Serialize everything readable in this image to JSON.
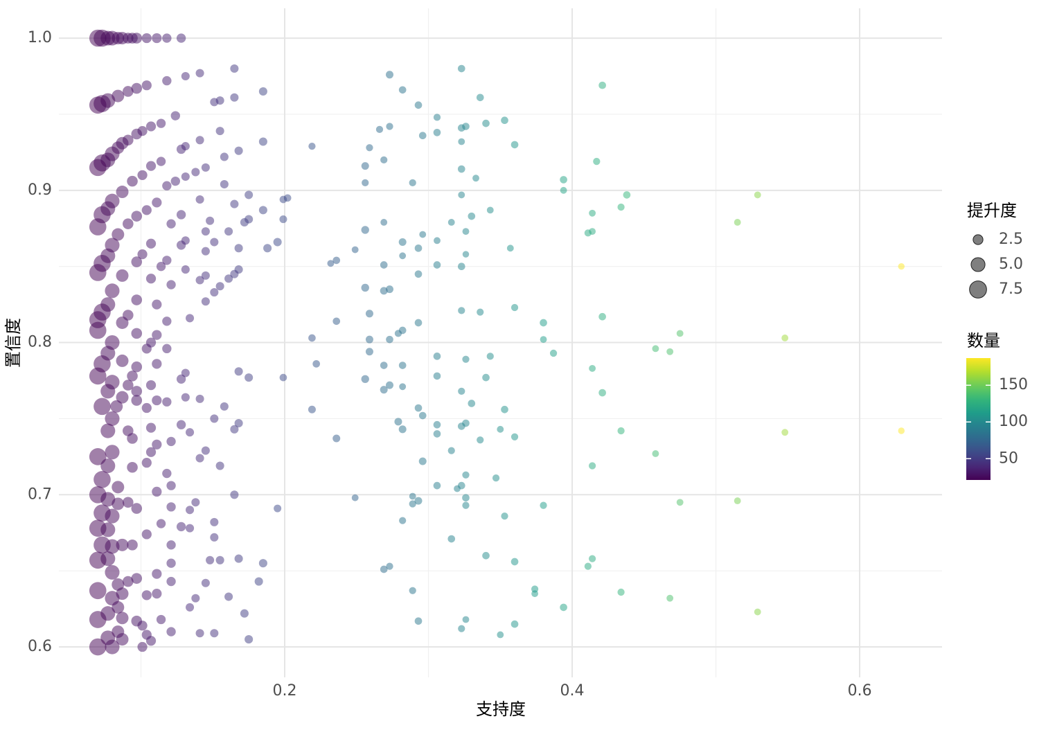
{
  "chart_data": {
    "type": "scatter",
    "x_label": "支持度",
    "y_label": "置信度",
    "size_label": "提升度",
    "color_label": "数量",
    "xlim": [
      0.0429,
      0.6573
    ],
    "ylim": [
      0.58,
      1.0196
    ],
    "xticks": [
      0.2,
      0.4,
      0.6
    ],
    "yticks": [
      0.6,
      0.7,
      0.8,
      0.9,
      {
        "value": 1,
        "label": "1.0"
      }
    ],
    "x_minor_ticks": [
      0.1,
      0.3,
      0.5
    ],
    "y_minor_ticks": [
      0.65,
      0.75,
      0.85,
      0.95
    ],
    "grid": true,
    "colormap": "viridis",
    "opacity": 0.5,
    "color_lim": [
      21,
      187
    ],
    "color_ticks": [
      50,
      100,
      150
    ],
    "size_ticks": [
      2.5,
      {
        "value": 5,
        "label": "5.0"
      },
      7.5
    ],
    "x": [
      0.07,
      0.073,
      0.077,
      0.08,
      0.084,
      0.087,
      0.091,
      0.094,
      0.097,
      0.104,
      0.111,
      0.118,
      0.128,
      0.165,
      0.141,
      0.131,
      0.118,
      0.185,
      0.165,
      0.155,
      0.151,
      0.104,
      0.097,
      0.091,
      0.084,
      0.077,
      0.073,
      0.07,
      0.124,
      0.114,
      0.107,
      0.101,
      0.097,
      0.091,
      0.087,
      0.084,
      0.08,
      0.077,
      0.073,
      0.07,
      0.155,
      0.141,
      0.131,
      0.128,
      0.185,
      0.168,
      0.158,
      0.114,
      0.107,
      0.101,
      0.094,
      0.087,
      0.08,
      0.077,
      0.073,
      0.07,
      0.145,
      0.138,
      0.131,
      0.124,
      0.118,
      0.158,
      0.175,
      0.165,
      0.141,
      0.111,
      0.104,
      0.097,
      0.091,
      0.084,
      0.08,
      0.077,
      0.073,
      0.07,
      0.185,
      0.175,
      0.172,
      0.148,
      0.128,
      0.121,
      0.145,
      0.161,
      0.131,
      0.128,
      0.107,
      0.101,
      0.151,
      0.145,
      0.168,
      0.188,
      0.195,
      0.097,
      0.118,
      0.114,
      0.131,
      0.168,
      0.165,
      0.161,
      0.141,
      0.145,
      0.155,
      0.151,
      0.121,
      0.107,
      0.087,
      0.08,
      0.077,
      0.073,
      0.07,
      0.145,
      0.111,
      0.097,
      0.134,
      0.118,
      0.091,
      0.087,
      0.07,
      0.097,
      0.111,
      0.107,
      0.08,
      0.077,
      0.104,
      0.118,
      0.073,
      0.087,
      0.097,
      0.111,
      0.131,
      0.128,
      0.168,
      0.175,
      0.07,
      0.08,
      0.094,
      0.107,
      0.091,
      0.077,
      0.097,
      0.141,
      0.131,
      0.118,
      0.111,
      0.097,
      0.087,
      0.073,
      0.083,
      0.104,
      0.158,
      0.151,
      0.08,
      0.128,
      0.168,
      0.165,
      0.107,
      0.077,
      0.134,
      0.091,
      0.094,
      0.121,
      0.111,
      0.145,
      0.08,
      0.107,
      0.07,
      0.141,
      0.104,
      0.077,
      0.155,
      0.094,
      0.118,
      0.073,
      0.121,
      0.084,
      0.111,
      0.07,
      0.165,
      0.077,
      0.091,
      0.084,
      0.138,
      0.121,
      0.097,
      0.134,
      0.073,
      0.08,
      0.114,
      0.151,
      0.128,
      0.134,
      0.07,
      0.077,
      0.104,
      0.151,
      0.121,
      0.073,
      0.08,
      0.087,
      0.094,
      0.168,
      0.155,
      0.148,
      0.185,
      0.121,
      0.077,
      0.07,
      0.08,
      0.111,
      0.097,
      0.182,
      0.145,
      0.121,
      0.091,
      0.084,
      0.07,
      0.111,
      0.087,
      0.104,
      0.161,
      0.138,
      0.08,
      0.134,
      0.084,
      0.077,
      0.172,
      0.114,
      0.097,
      0.087,
      0.07,
      0.101,
      0.084,
      0.121,
      0.141,
      0.151,
      0.104,
      0.077,
      0.087,
      0.107,
      0.175,
      0.07,
      0.08,
      0.101,
      0.629,
      0.629,
      0.548,
      0.548,
      0.529,
      0.529,
      0.515,
      0.515,
      0.475,
      0.475,
      0.468,
      0.468,
      0.458,
      0.458,
      0.438,
      0.434,
      0.434,
      0.434,
      0.421,
      0.421,
      0.421,
      0.417,
      0.414,
      0.414,
      0.411,
      0.414,
      0.414,
      0.414,
      0.411,
      0.394,
      0.394,
      0.394,
      0.387,
      0.38,
      0.38,
      0.38,
      0.374,
      0.374,
      0.36,
      0.36,
      0.36,
      0.36,
      0.36,
      0.357,
      0.353,
      0.353,
      0.353,
      0.35,
      0.35,
      0.343,
      0.343,
      0.34,
      0.34,
      0.34,
      0.347,
      0.336,
      0.336,
      0.336,
      0.333,
      0.33,
      0.33,
      0.326,
      0.326,
      0.326,
      0.326,
      0.326,
      0.326,
      0.326,
      0.326,
      0.326,
      0.323,
      0.323,
      0.323,
      0.323,
      0.323,
      0.323,
      0.323,
      0.323,
      0.323,
      0.323,
      0.323,
      0.32,
      0.316,
      0.316,
      0.316,
      0.306,
      0.306,
      0.306,
      0.306,
      0.306,
      0.306,
      0.306,
      0.306,
      0.306,
      0.293,
      0.296,
      0.296,
      0.293,
      0.293,
      0.293,
      0.293,
      0.296,
      0.296,
      0.293,
      0.293,
      0.289,
      0.289,
      0.289,
      0.289,
      0.282,
      0.282,
      0.282,
      0.282,
      0.282,
      0.282,
      0.282,
      0.282,
      0.279,
      0.279,
      0.273,
      0.273,
      0.273,
      0.273,
      0.273,
      0.273,
      0.269,
      0.269,
      0.269,
      0.269,
      0.269,
      0.269,
      0.269,
      0.266,
      0.259,
      0.259,
      0.259,
      0.259,
      0.256,
      0.256,
      0.256,
      0.256,
      0.256,
      0.249,
      0.249,
      0.236,
      0.236,
      0.236,
      0.232,
      0.222,
      0.219,
      0.219,
      0.219,
      0.202,
      0.199,
      0.199,
      0.199,
      0.195
    ],
    "values": [
      1,
      1,
      1,
      1,
      1,
      1,
      1,
      1,
      1,
      1,
      1,
      1,
      1,
      0.98,
      0.977,
      0.975,
      0.972,
      0.965,
      0.961,
      0.959,
      0.958,
      0.969,
      0.967,
      0.965,
      0.962,
      0.959,
      0.957,
      0.956,
      0.949,
      0.944,
      0.942,
      0.939,
      0.937,
      0.933,
      0.931,
      0.928,
      0.924,
      0.92,
      0.918,
      0.915,
      0.939,
      0.933,
      0.929,
      0.927,
      0.932,
      0.926,
      0.922,
      0.919,
      0.916,
      0.91,
      0.906,
      0.899,
      0.893,
      0.888,
      0.884,
      0.876,
      0.915,
      0.912,
      0.909,
      0.906,
      0.903,
      0.904,
      0.897,
      0.891,
      0.894,
      0.892,
      0.887,
      0.883,
      0.878,
      0.871,
      0.864,
      0.857,
      0.852,
      0.846,
      0.887,
      0.881,
      0.879,
      0.88,
      0.884,
      0.878,
      0.873,
      0.873,
      0.867,
      0.864,
      0.865,
      0.858,
      0.866,
      0.86,
      0.862,
      0.862,
      0.866,
      0.853,
      0.854,
      0.85,
      0.848,
      0.848,
      0.845,
      0.842,
      0.841,
      0.844,
      0.837,
      0.833,
      0.838,
      0.842,
      0.844,
      0.834,
      0.825,
      0.82,
      0.815,
      0.827,
      0.825,
      0.828,
      0.816,
      0.814,
      0.818,
      0.813,
      0.808,
      0.806,
      0.805,
      0.8,
      0.8,
      0.793,
      0.796,
      0.796,
      0.786,
      0.788,
      0.784,
      0.786,
      0.78,
      0.776,
      0.781,
      0.777,
      0.778,
      0.774,
      0.778,
      0.772,
      0.772,
      0.768,
      0.768,
      0.763,
      0.764,
      0.761,
      0.762,
      0.762,
      0.764,
      0.758,
      0.758,
      0.757,
      0.758,
      0.75,
      0.75,
      0.746,
      0.747,
      0.743,
      0.744,
      0.742,
      0.741,
      0.742,
      0.737,
      0.735,
      0.733,
      0.729,
      0.728,
      0.728,
      0.725,
      0.724,
      0.721,
      0.719,
      0.719,
      0.718,
      0.714,
      0.71,
      0.706,
      0.705,
      0.702,
      0.7,
      0.7,
      0.697,
      0.695,
      0.694,
      0.695,
      0.692,
      0.691,
      0.69,
      0.688,
      0.686,
      0.681,
      0.682,
      0.679,
      0.678,
      0.678,
      0.677,
      0.674,
      0.672,
      0.667,
      0.667,
      0.666,
      0.667,
      0.667,
      0.658,
      0.657,
      0.657,
      0.655,
      0.655,
      0.658,
      0.657,
      0.649,
      0.648,
      0.645,
      0.643,
      0.642,
      0.643,
      0.643,
      0.641,
      0.637,
      0.635,
      0.635,
      0.634,
      0.633,
      0.632,
      0.632,
      0.626,
      0.626,
      0.622,
      0.622,
      0.618,
      0.617,
      0.619,
      0.618,
      0.614,
      0.61,
      0.61,
      0.609,
      0.609,
      0.608,
      0.606,
      0.605,
      0.604,
      0.605,
      0.6,
      0.6,
      0.6,
      0.85,
      0.742,
      0.803,
      0.741,
      0.897,
      0.623,
      0.879,
      0.696,
      0.806,
      0.695,
      0.794,
      0.632,
      0.796,
      0.727,
      0.897,
      0.889,
      0.742,
      0.636,
      0.969,
      0.817,
      0.767,
      0.919,
      0.885,
      0.873,
      0.872,
      0.783,
      0.719,
      0.658,
      0.653,
      0.907,
      0.9,
      0.626,
      0.793,
      0.813,
      0.802,
      0.693,
      0.638,
      0.635,
      0.93,
      0.823,
      0.738,
      0.656,
      0.615,
      0.862,
      0.946,
      0.756,
      0.686,
      0.743,
      0.608,
      0.887,
      0.791,
      0.944,
      0.777,
      0.66,
      0.711,
      0.961,
      0.82,
      0.736,
      0.908,
      0.883,
      0.76,
      0.942,
      0.873,
      0.858,
      0.789,
      0.747,
      0.713,
      0.698,
      0.693,
      0.618,
      0.98,
      0.941,
      0.932,
      0.914,
      0.897,
      0.85,
      0.821,
      0.768,
      0.745,
      0.706,
      0.612,
      0.704,
      0.879,
      0.729,
      0.671,
      0.948,
      0.938,
      0.867,
      0.851,
      0.791,
      0.778,
      0.746,
      0.74,
      0.706,
      0.956,
      0.936,
      0.871,
      0.862,
      0.845,
      0.813,
      0.757,
      0.752,
      0.722,
      0.696,
      0.617,
      0.905,
      0.699,
      0.694,
      0.637,
      0.966,
      0.866,
      0.857,
      0.808,
      0.785,
      0.771,
      0.743,
      0.683,
      0.806,
      0.748,
      0.976,
      0.942,
      0.835,
      0.802,
      0.772,
      0.653,
      0.92,
      0.879,
      0.851,
      0.834,
      0.785,
      0.769,
      0.651,
      0.94,
      0.928,
      0.819,
      0.802,
      0.794,
      0.916,
      0.905,
      0.874,
      0.836,
      0.776,
      0.861,
      0.698,
      0.854,
      0.814,
      0.737,
      0.852,
      0.786,
      0.929,
      0.803,
      0.756,
      0.895,
      0.894,
      0.881,
      0.777,
      0.691
    ],
    "sizes": [
      7.5,
      7.5,
      5.5,
      5.5,
      4,
      4,
      3,
      3,
      3,
      2.5,
      2.5,
      2.2,
      2.2,
      1.8,
      1.8,
      1.8,
      2.2,
      1.8,
      1.8,
      1.8,
      1.8,
      2.5,
      3,
      3,
      4,
      5.5,
      7.5,
      7.5,
      2.2,
      2.2,
      2.5,
      2.5,
      3,
      3,
      4,
      4,
      5.5,
      5.5,
      7.5,
      7.5,
      1.8,
      1.8,
      1.8,
      2.2,
      1.8,
      1.8,
      1.8,
      2.2,
      2.5,
      2.5,
      3,
      4,
      5.5,
      5.5,
      7.5,
      7.5,
      1.8,
      1.8,
      1.8,
      2.2,
      2.2,
      1.8,
      1.8,
      1.8,
      1.8,
      2.5,
      2.5,
      3,
      3,
      4,
      5.5,
      5.5,
      7.5,
      7.5,
      1.8,
      1.8,
      1.8,
      1.8,
      2.2,
      2.2,
      1.8,
      1.8,
      1.8,
      2.2,
      2.5,
      2.5,
      1.8,
      1.8,
      1.8,
      1.8,
      1.8,
      3,
      2.2,
      2.2,
      1.8,
      1.8,
      1.8,
      1.8,
      1.8,
      1.8,
      1.8,
      1.8,
      2.2,
      2.5,
      4,
      5.5,
      5.5,
      7.5,
      7.5,
      1.8,
      2.5,
      3,
      1.8,
      2.2,
      3,
      4,
      7.5,
      3,
      2.5,
      2.5,
      5.5,
      5.5,
      2.5,
      2.2,
      7.5,
      4,
      3,
      2.5,
      1.8,
      2.2,
      1.8,
      1.8,
      7.5,
      5.5,
      3,
      2.5,
      3,
      5.5,
      3,
      1.8,
      1.8,
      2.2,
      2.5,
      3,
      4,
      7.5,
      4,
      2.5,
      1.8,
      1.8,
      5.5,
      2.2,
      1.8,
      1.8,
      2.5,
      5.5,
      1.8,
      3,
      3,
      2.2,
      2.5,
      1.8,
      5.5,
      2.5,
      7.5,
      1.8,
      2.5,
      5.5,
      1.8,
      3,
      2.2,
      7.5,
      2.2,
      4,
      2.5,
      7.5,
      1.8,
      5.5,
      3,
      4,
      1.8,
      2.2,
      3,
      1.8,
      7.5,
      5.5,
      2.2,
      1.8,
      2.2,
      1.8,
      7.5,
      5.5,
      2.5,
      1.8,
      2.2,
      7.5,
      5.5,
      4,
      3,
      1.8,
      1.8,
      1.8,
      1.8,
      2.2,
      5.5,
      7.5,
      5.5,
      2.5,
      3,
      1.8,
      1.8,
      2.2,
      3,
      4,
      7.5,
      2.5,
      4,
      2.5,
      1.8,
      1.8,
      5.5,
      1.8,
      4,
      5.5,
      1.8,
      2.2,
      3,
      4,
      7.5,
      2.5,
      4,
      2.2,
      1.8,
      1.8,
      2.5,
      5.5,
      4,
      2.5,
      1.8,
      7.5,
      5.5,
      2.5,
      1.1,
      1.1,
      1.2,
      1.2,
      1.2,
      1.2,
      1.2,
      1.2,
      1.2,
      1.2,
      1.2,
      1.2,
      1.2,
      1.2,
      1.4,
      1.3,
      1.3,
      1.3,
      1.4,
      1.4,
      1.4,
      1.3,
      1.2,
      1.2,
      1.3,
      1.2,
      1.3,
      1.3,
      1.3,
      1.4,
      1.2,
      1.4,
      1.3,
      1.4,
      1.2,
      1.3,
      1.3,
      1.2,
      1.4,
      1.3,
      1.3,
      1.4,
      1.4,
      1.2,
      1.4,
      1.4,
      1.3,
      1.2,
      1.2,
      1.2,
      1.3,
      1.4,
      1.4,
      1.4,
      1.3,
      1.4,
      1.3,
      1.3,
      1.2,
      1.4,
      1.4,
      1.4,
      1.2,
      1.1,
      1.3,
      1.4,
      1.3,
      1.4,
      1.3,
      1.2,
      1.4,
      1.4,
      1.2,
      1.4,
      1.2,
      1.4,
      1.3,
      1.3,
      1.4,
      1.4,
      1.3,
      1.2,
      1.2,
      1.3,
      1.4,
      1.3,
      1.4,
      1.2,
      1.4,
      1.4,
      1.4,
      1.4,
      1.4,
      1.4,
      1.4,
      1.4,
      1.2,
      1.4,
      1.4,
      1.4,
      1.4,
      1.4,
      1.5,
      1.5,
      1.4,
      1.3,
      1.2,
      1.3,
      1.3,
      1.4,
      1.5,
      1.2,
      1.4,
      1.4,
      1.2,
      1.5,
      1.3,
      1.3,
      1.5,
      1.5,
      1.3,
      1.5,
      1.4,
      1.5,
      1.3,
      1.3,
      1.2,
      1.4,
      1.5,
      1.4,
      1.5,
      1.4,
      1.3,
      1.3,
      1.5,
      1.5,
      1.5,
      1.5,
      1.3,
      1.6,
      1.6,
      1.6,
      1.2,
      1.2,
      1.4,
      1.4,
      1.5,
      1.2,
      1.4,
      1.3,
      1.4,
      1.5,
      1.4,
      1.4,
      1.5,
      1.4,
      1.5
    ],
    "counts": [
      21,
      22,
      23,
      24,
      25,
      26,
      27,
      28,
      29,
      31,
      33,
      35,
      38,
      49,
      42,
      39,
      35,
      55,
      49,
      46,
      45,
      31,
      29,
      27,
      25,
      23,
      22,
      21,
      37,
      34,
      32,
      30,
      29,
      27,
      26,
      25,
      24,
      23,
      22,
      21,
      46,
      42,
      39,
      38,
      55,
      50,
      47,
      34,
      32,
      30,
      28,
      26,
      24,
      23,
      22,
      21,
      43,
      41,
      39,
      37,
      35,
      47,
      52,
      49,
      42,
      33,
      31,
      29,
      27,
      25,
      24,
      23,
      22,
      21,
      55,
      52,
      51,
      44,
      38,
      36,
      43,
      48,
      39,
      38,
      32,
      30,
      45,
      43,
      50,
      56,
      58,
      29,
      35,
      34,
      39,
      50,
      49,
      48,
      42,
      43,
      46,
      45,
      36,
      32,
      26,
      24,
      23,
      22,
      21,
      43,
      33,
      29,
      40,
      35,
      27,
      26,
      21,
      29,
      33,
      32,
      24,
      23,
      31,
      35,
      22,
      26,
      29,
      33,
      39,
      38,
      50,
      52,
      21,
      24,
      28,
      32,
      27,
      23,
      29,
      42,
      39,
      35,
      33,
      29,
      26,
      22,
      25,
      31,
      47,
      45,
      24,
      38,
      50,
      49,
      32,
      23,
      40,
      27,
      28,
      36,
      33,
      43,
      24,
      32,
      21,
      42,
      31,
      23,
      46,
      28,
      35,
      22,
      36,
      25,
      33,
      21,
      49,
      23,
      27,
      25,
      41,
      36,
      29,
      40,
      22,
      24,
      34,
      45,
      38,
      40,
      21,
      23,
      31,
      45,
      36,
      22,
      24,
      26,
      28,
      50,
      46,
      44,
      55,
      36,
      23,
      21,
      24,
      33,
      29,
      54,
      43,
      36,
      27,
      25,
      21,
      33,
      26,
      31,
      48,
      41,
      24,
      40,
      25,
      23,
      51,
      34,
      29,
      26,
      21,
      30,
      25,
      36,
      42,
      45,
      31,
      23,
      26,
      32,
      52,
      21,
      24,
      30,
      187,
      187,
      163,
      163,
      157,
      157,
      153,
      153,
      141,
      141,
      139,
      139,
      136,
      136,
      130,
      129,
      129,
      129,
      125,
      125,
      125,
      124,
      123,
      123,
      122,
      123,
      123,
      123,
      122,
      117,
      117,
      117,
      115,
      113,
      113,
      113,
      111,
      111,
      107,
      107,
      107,
      107,
      107,
      106,
      105,
      105,
      105,
      104,
      104,
      102,
      102,
      101,
      101,
      101,
      103,
      100,
      100,
      100,
      99,
      98,
      98,
      97,
      97,
      97,
      97,
      97,
      97,
      97,
      97,
      97,
      96,
      96,
      96,
      96,
      96,
      96,
      96,
      96,
      96,
      96,
      96,
      95,
      94,
      94,
      94,
      91,
      91,
      91,
      91,
      91,
      91,
      91,
      91,
      91,
      87,
      88,
      88,
      87,
      87,
      87,
      87,
      88,
      88,
      87,
      87,
      86,
      86,
      86,
      86,
      84,
      84,
      84,
      84,
      84,
      84,
      84,
      84,
      83,
      83,
      81,
      81,
      81,
      81,
      81,
      81,
      80,
      80,
      80,
      80,
      80,
      80,
      80,
      79,
      77,
      77,
      77,
      77,
      76,
      76,
      76,
      76,
      76,
      74,
      74,
      70,
      70,
      70,
      69,
      66,
      65,
      65,
      65,
      60,
      59,
      59,
      59,
      58
    ]
  }
}
